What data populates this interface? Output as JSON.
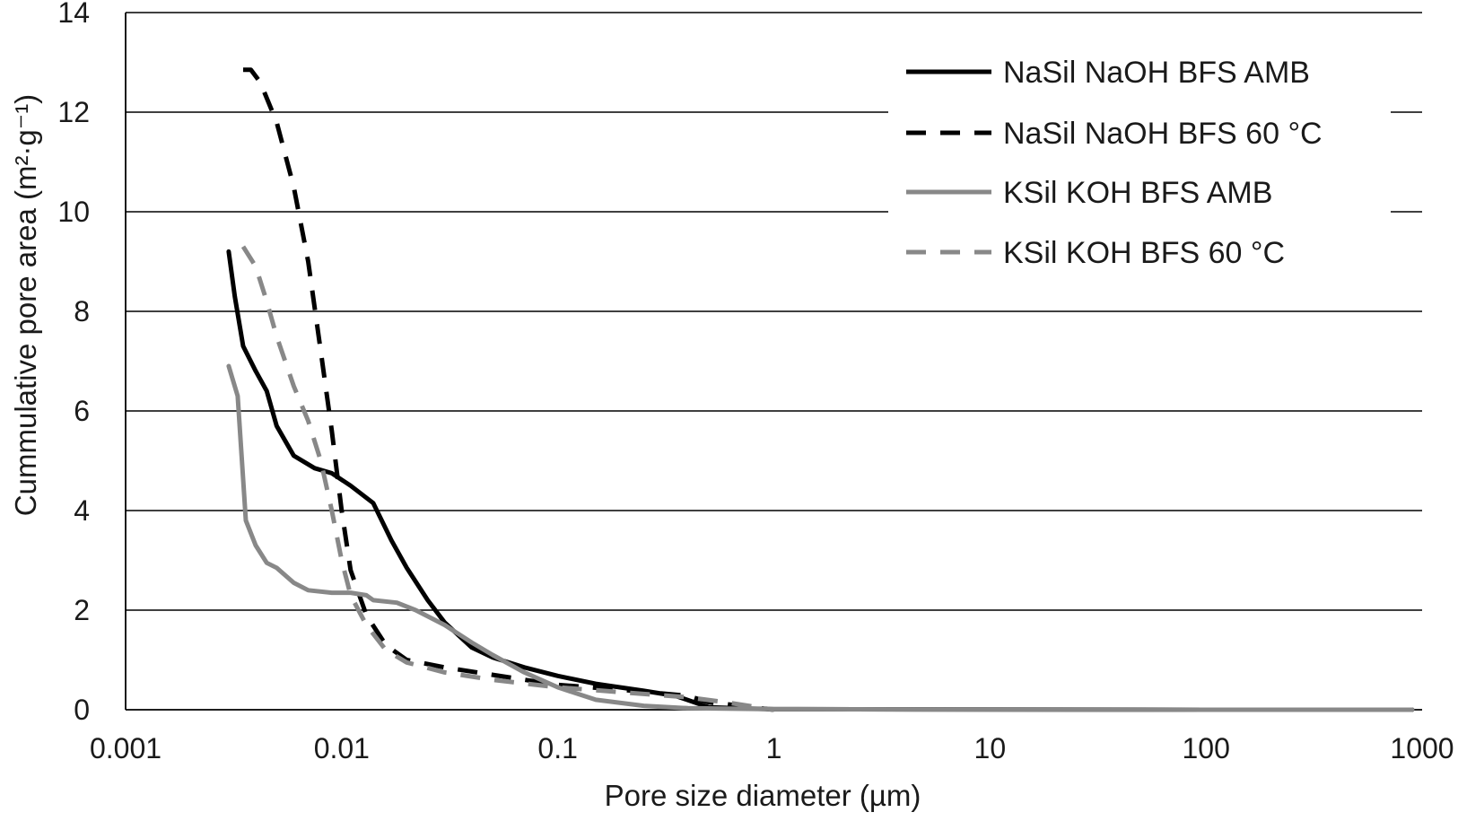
{
  "chart_data": {
    "type": "line",
    "title": "",
    "xlabel": "Pore size diameter (µm)",
    "ylabel": "Cummulative pore area (m²·g⁻¹)",
    "xscale": "log",
    "xlim": [
      0.001,
      1000
    ],
    "ylim": [
      0,
      14
    ],
    "xticks": [
      0.001,
      0.01,
      0.1,
      1,
      10,
      100,
      1000
    ],
    "xtick_labels": [
      "0.001",
      "0.01",
      "0.1",
      "1",
      "10",
      "100",
      "1000"
    ],
    "yticks": [
      0,
      2,
      4,
      6,
      8,
      10,
      12,
      14
    ],
    "ytick_labels": [
      "0",
      "2",
      "4",
      "6",
      "8",
      "10",
      "12",
      "14"
    ],
    "grid": "horizontal",
    "legend_position": "top-right",
    "series": [
      {
        "name": "NaSil NaOH BFS AMB",
        "color": "#000000",
        "dash": "solid",
        "points": [
          [
            0.003,
            9.2
          ],
          [
            0.0032,
            8.3
          ],
          [
            0.0035,
            7.3
          ],
          [
            0.004,
            6.8
          ],
          [
            0.0045,
            6.4
          ],
          [
            0.005,
            5.7
          ],
          [
            0.006,
            5.1
          ],
          [
            0.0075,
            4.85
          ],
          [
            0.009,
            4.75
          ],
          [
            0.011,
            4.5
          ],
          [
            0.014,
            4.15
          ],
          [
            0.017,
            3.4
          ],
          [
            0.02,
            2.85
          ],
          [
            0.025,
            2.2
          ],
          [
            0.03,
            1.75
          ],
          [
            0.04,
            1.25
          ],
          [
            0.05,
            1.05
          ],
          [
            0.07,
            0.85
          ],
          [
            0.1,
            0.68
          ],
          [
            0.15,
            0.52
          ],
          [
            0.25,
            0.38
          ],
          [
            0.35,
            0.28
          ],
          [
            0.5,
            0.05
          ],
          [
            0.8,
            0.02
          ],
          [
            1,
            0.01
          ],
          [
            100,
            0.0
          ],
          [
            900,
            0.0
          ]
        ]
      },
      {
        "name": "NaSil NaOH BFS 60 °C",
        "color": "#000000",
        "dash": "dashed",
        "points": [
          [
            0.0035,
            12.85
          ],
          [
            0.0038,
            12.85
          ],
          [
            0.0042,
            12.6
          ],
          [
            0.005,
            11.8
          ],
          [
            0.006,
            10.5
          ],
          [
            0.007,
            9.0
          ],
          [
            0.008,
            7.2
          ],
          [
            0.009,
            5.6
          ],
          [
            0.01,
            4.0
          ],
          [
            0.011,
            2.8
          ],
          [
            0.013,
            1.9
          ],
          [
            0.016,
            1.3
          ],
          [
            0.02,
            1.0
          ],
          [
            0.03,
            0.85
          ],
          [
            0.05,
            0.7
          ],
          [
            0.1,
            0.5
          ],
          [
            0.2,
            0.4
          ],
          [
            0.4,
            0.28
          ],
          [
            0.5,
            0.15
          ],
          [
            0.7,
            0.08
          ],
          [
            0.9,
            0.02
          ],
          [
            1,
            0.0
          ]
        ]
      },
      {
        "name": "KSil KOH BFS AMB",
        "color": "#888888",
        "dash": "solid",
        "points": [
          [
            0.003,
            6.9
          ],
          [
            0.0033,
            6.3
          ],
          [
            0.0036,
            3.8
          ],
          [
            0.004,
            3.3
          ],
          [
            0.0045,
            2.95
          ],
          [
            0.005,
            2.85
          ],
          [
            0.006,
            2.55
          ],
          [
            0.007,
            2.4
          ],
          [
            0.009,
            2.35
          ],
          [
            0.011,
            2.35
          ],
          [
            0.013,
            2.3
          ],
          [
            0.014,
            2.2
          ],
          [
            0.018,
            2.15
          ],
          [
            0.022,
            2.0
          ],
          [
            0.03,
            1.7
          ],
          [
            0.04,
            1.35
          ],
          [
            0.05,
            1.1
          ],
          [
            0.07,
            0.75
          ],
          [
            0.1,
            0.45
          ],
          [
            0.15,
            0.2
          ],
          [
            0.25,
            0.08
          ],
          [
            0.4,
            0.03
          ],
          [
            1,
            0.01
          ],
          [
            100,
            0.0
          ],
          [
            900,
            0.0
          ]
        ]
      },
      {
        "name": "KSil KOH BFS 60 °C",
        "color": "#888888",
        "dash": "dashed",
        "points": [
          [
            0.0035,
            9.3
          ],
          [
            0.004,
            8.9
          ],
          [
            0.0045,
            8.2
          ],
          [
            0.005,
            7.5
          ],
          [
            0.006,
            6.5
          ],
          [
            0.007,
            5.8
          ],
          [
            0.008,
            5.0
          ],
          [
            0.009,
            4.0
          ],
          [
            0.01,
            3.0
          ],
          [
            0.011,
            2.3
          ],
          [
            0.013,
            1.7
          ],
          [
            0.016,
            1.2
          ],
          [
            0.02,
            0.95
          ],
          [
            0.03,
            0.75
          ],
          [
            0.05,
            0.6
          ],
          [
            0.1,
            0.45
          ],
          [
            0.2,
            0.35
          ],
          [
            0.4,
            0.25
          ],
          [
            0.6,
            0.15
          ],
          [
            0.9,
            0.03
          ],
          [
            1,
            0.0
          ]
        ]
      }
    ]
  }
}
